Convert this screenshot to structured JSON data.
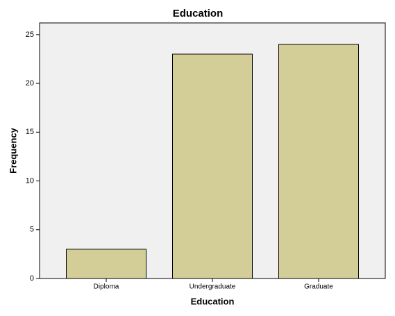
{
  "chart_data": {
    "type": "bar",
    "title": "Education",
    "x_label": "Education",
    "y_label": "Frequency",
    "categories": [
      "Diploma",
      "Undergraduate",
      "Graduate"
    ],
    "values": [
      3,
      23,
      24
    ],
    "color": "#d3ce98",
    "ylim": [
      0,
      26.2
    ],
    "yticks": [
      0,
      5,
      10,
      15,
      20,
      25
    ],
    "grid": false
  }
}
